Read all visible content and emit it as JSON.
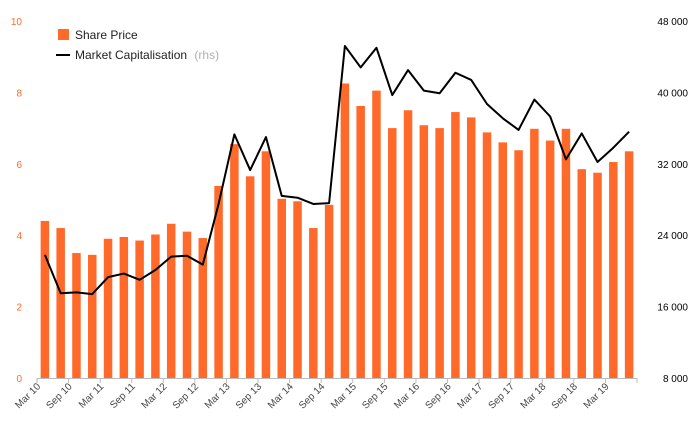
{
  "chart_data": {
    "type": "bar",
    "colors": {
      "bar": "#ff6a2b",
      "line": "#000000",
      "left_axis_text": "#ff6a2b",
      "right_axis_text": "#000000",
      "axis": "#bbbbbb"
    },
    "legend": {
      "placement": "top-left",
      "bar_label": "Share Price",
      "line_label": "Market Capitalisation",
      "line_suffix": "(rhs)"
    },
    "y_left": {
      "min": 0,
      "max": 10,
      "ticks": [
        "0",
        "2",
        "4",
        "6",
        "8",
        "10"
      ],
      "tick_values": [
        0,
        2,
        4,
        6,
        8,
        10
      ]
    },
    "y_right": {
      "min": 8000,
      "max": 48000,
      "ticks": [
        "8 000",
        "16 000",
        "24 000",
        "32 000",
        "40 000",
        "48 000"
      ],
      "tick_values": [
        8000,
        16000,
        24000,
        32000,
        40000,
        48000
      ]
    },
    "x_tick_labels": [
      "Mar 10",
      "Sep 10",
      "Mar 11",
      "Sep 11",
      "Mar 12",
      "Sep 12",
      "Mar 13",
      "Sep 13",
      "Mar 14",
      "Sep 14",
      "Mar 15",
      "Sep 15",
      "Mar 16",
      "Sep 16",
      "Mar 17",
      "Sep 17",
      "Mar 18",
      "Sep 18",
      "Mar 19"
    ],
    "series": [
      {
        "name": "Share Price",
        "type": "bar",
        "axis": "left",
        "values": [
          4.4,
          4.2,
          3.5,
          3.45,
          3.9,
          3.95,
          3.85,
          4.02,
          4.32,
          4.1,
          3.92,
          5.38,
          6.55,
          5.65,
          6.35,
          5.02,
          4.95,
          4.2,
          4.85,
          8.25,
          7.62,
          8.05,
          7.0,
          7.5,
          7.08,
          7.0,
          7.45,
          7.3,
          6.88,
          6.6,
          6.38,
          6.98,
          6.65,
          6.98,
          5.85,
          5.75,
          6.05,
          6.35
        ]
      },
      {
        "name": "Market Capitalisation",
        "type": "line",
        "axis": "right",
        "values": [
          21800,
          17500,
          17600,
          17400,
          19300,
          19700,
          19000,
          20100,
          21600,
          21700,
          20700,
          27500,
          35300,
          31300,
          35000,
          28400,
          28200,
          27500,
          27600,
          45200,
          42800,
          45000,
          39700,
          42500,
          40200,
          39900,
          42200,
          41400,
          38700,
          37100,
          35800,
          39200,
          37300,
          32500,
          35400,
          32200,
          33800,
          35600
        ]
      }
    ]
  }
}
